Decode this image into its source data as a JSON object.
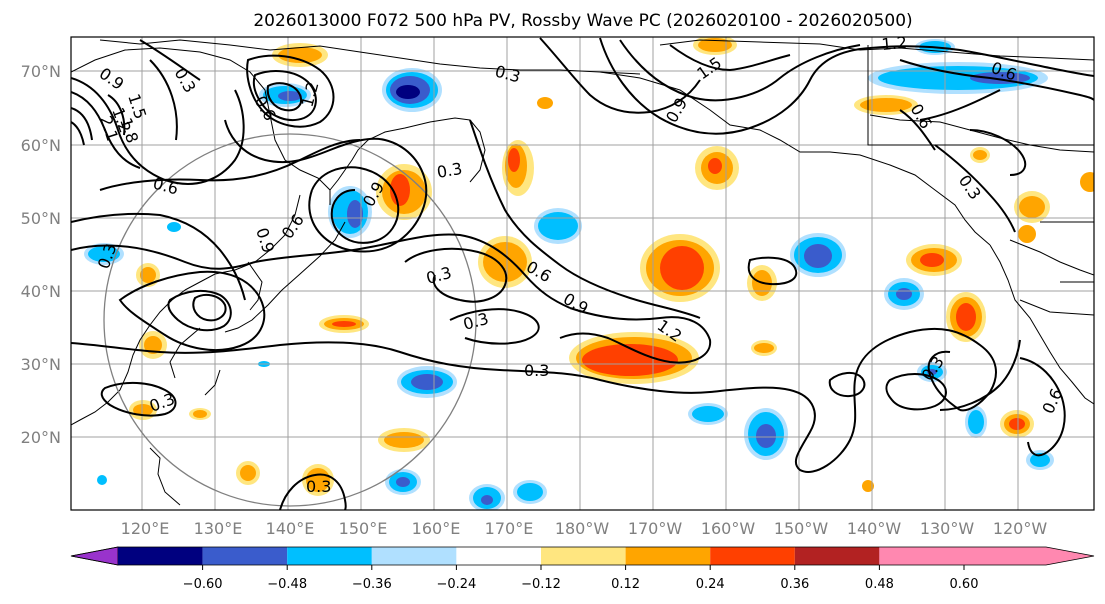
{
  "title": "2026013000 F072 500 hPa PV, Rossby Wave PC (2026020100 - 2026020500)",
  "lat_labels": [
    "70°N",
    "60°N",
    "50°N",
    "40°N",
    "30°N",
    "20°N"
  ],
  "lon_labels": [
    "120°E",
    "130°E",
    "140°E",
    "150°E",
    "160°E",
    "170°E",
    "180°W",
    "170°W",
    "160°W",
    "150°W",
    "140°W",
    "130°W",
    "120°W"
  ],
  "contour_labels": [
    "0.9",
    "1.2",
    "1.5",
    "1.8",
    "2.1",
    "0.3",
    "0.6",
    "0.6",
    "0.9",
    "0.3",
    "0.6",
    "0.9",
    "1.2",
    "0.3",
    "0.3",
    "0.3",
    "0.6",
    "0.9",
    "0.3",
    "1.2",
    "1.5",
    "0.9",
    "0.6",
    "0.6",
    "0.3",
    "0.3",
    "0.6",
    "0.3"
  ],
  "colorbar": {
    "ticks": [
      "−0.60",
      "−0.48",
      "−0.36",
      "−0.24",
      "−0.12",
      "0.12",
      "0.24",
      "0.36",
      "0.48",
      "0.60"
    ],
    "bin_colors": [
      "#9933cc",
      "#00007f",
      "#3a5ccc",
      "#00bfff",
      "#b0e0ff",
      "#ffffff",
      "#ffe680",
      "#ffa500",
      "#ff4000",
      "#b22222",
      "#ff88b0"
    ]
  },
  "colors": {
    "pos_light": "#ffe680",
    "pos_mid": "#ffa500",
    "pos_strong": "#ff4000",
    "neg_light": "#b0e0ff",
    "neg_mid": "#00bfff",
    "neg_strong": "#3a5ccc",
    "neg_max": "#00007f",
    "grid": "#a0a0a0",
    "contour": "#000000",
    "coast": "#000000"
  }
}
